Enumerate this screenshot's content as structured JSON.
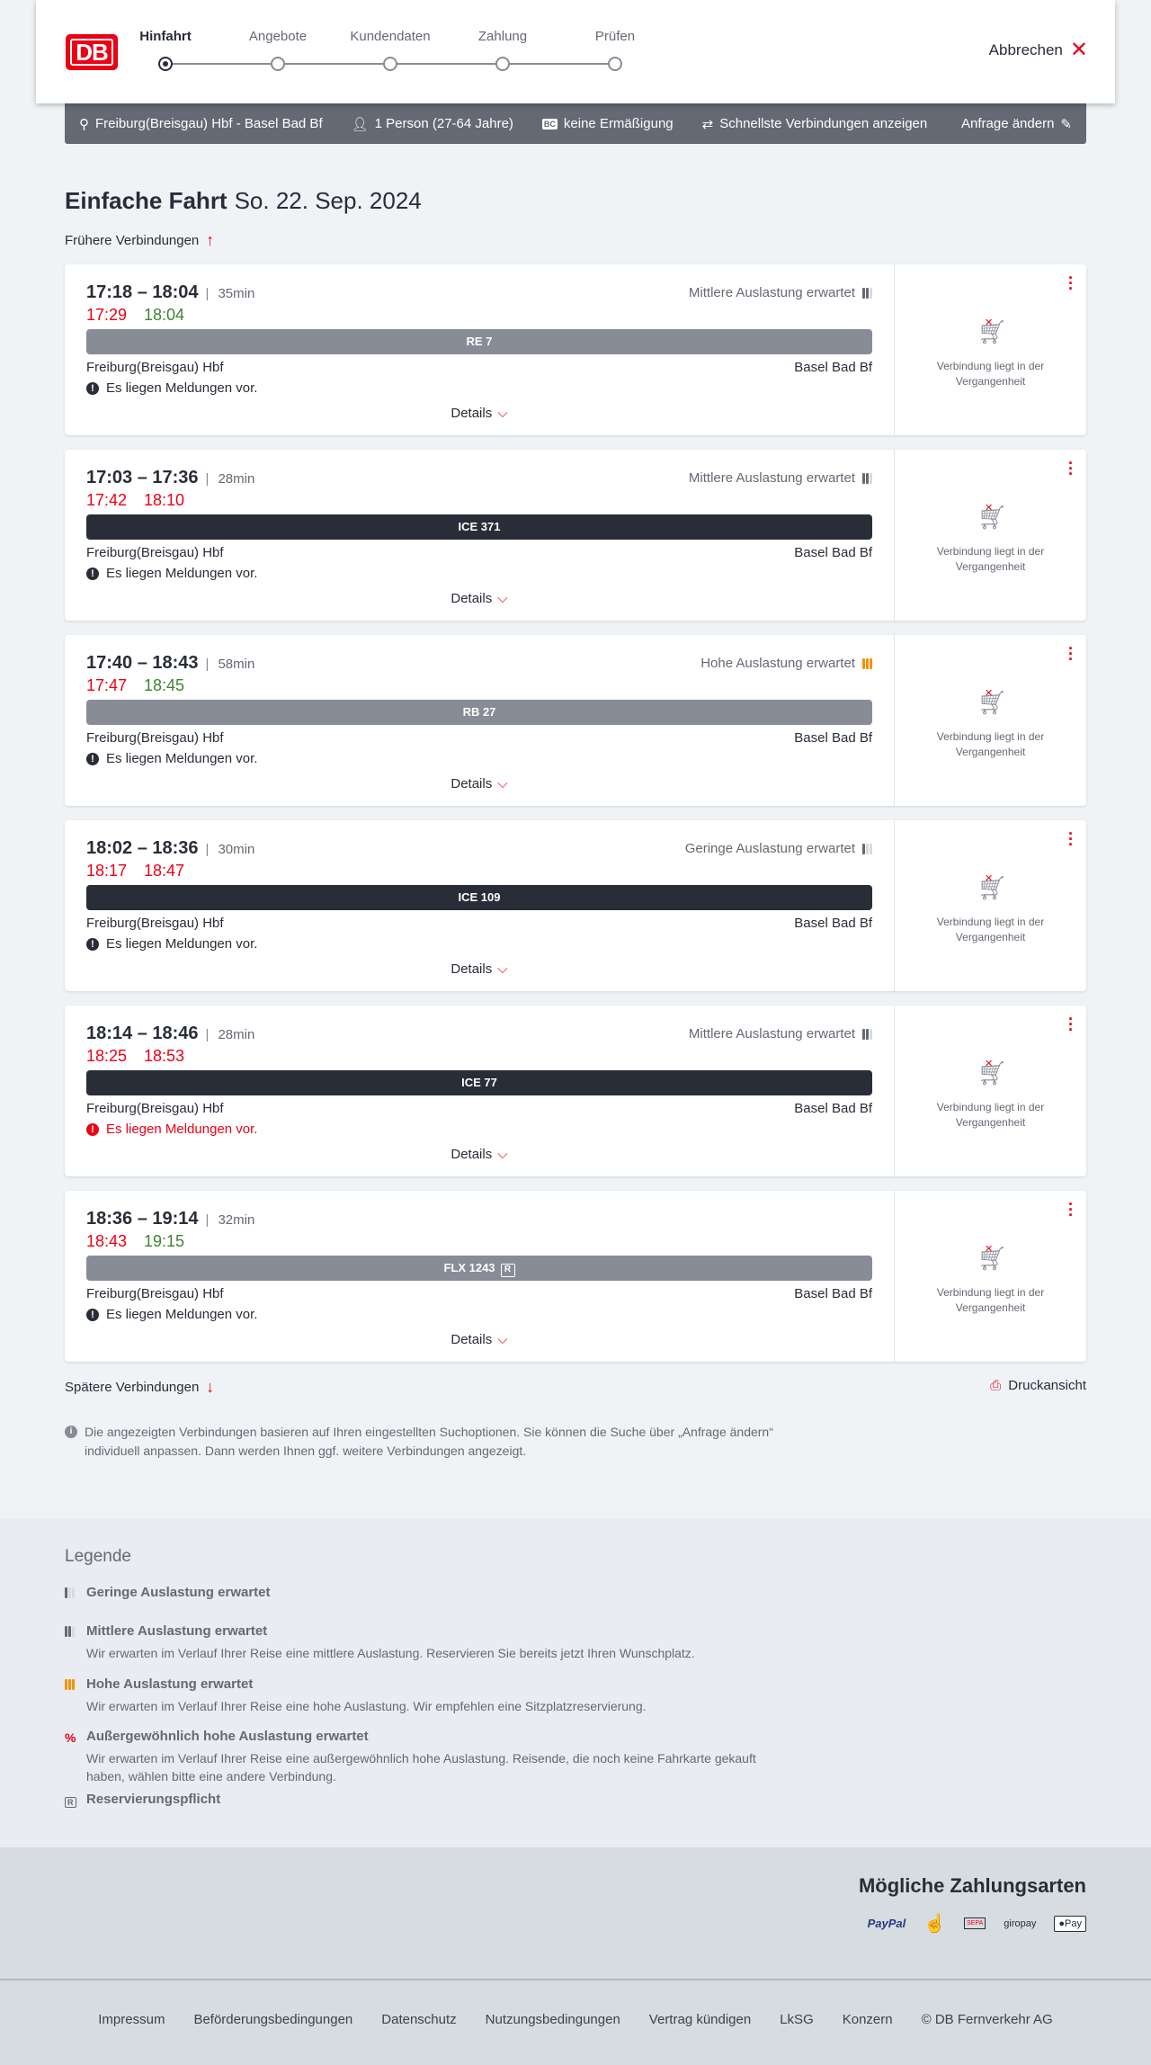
{
  "header": {
    "logo": "DB",
    "steps": [
      "Hinfahrt",
      "Angebote",
      "Kundendaten",
      "Zahlung",
      "Prüfen"
    ],
    "active_step": 0,
    "cancel": "Abbrechen"
  },
  "search": {
    "route": "Freiburg(Breisgau) Hbf - Basel Bad Bf",
    "persons": "1 Person (27-64 Jahre)",
    "discount": "keine Ermäßigung",
    "fastest": "Schnellste Verbindungen anzeigen",
    "edit": "Anfrage ändern"
  },
  "page": {
    "title": "Einfache Fahrt",
    "date": "So. 22. Sep. 2024",
    "earlier": "Frühere Verbindungen",
    "later": "Spätere Verbindungen",
    "print": "Druckansicht",
    "info": "Die angezeigten Verbindungen basieren auf Ihren eingestellten Suchoptionen. Sie können die Suche über „Anfrage ändern“ individuell anpassen. Dann werden Ihnen ggf. weitere Verbindungen angezeigt."
  },
  "colors": {
    "accent": "#ec0016",
    "delay": "#ec0016",
    "ontime": "#408335",
    "regional": "#878c96",
    "longdistance": "#282d37",
    "high_occupancy": "#f39200"
  },
  "connections": [
    {
      "times": "17:18 – 18:04",
      "duration": "35min",
      "occupancy": "Mittlere Auslastung erwartet",
      "level": 2,
      "rt_dep": "17:29",
      "rt_arr": "18:04",
      "arr_ontime": true,
      "train": "RE 7",
      "dark": false,
      "from": "Freiburg(Breisgau) Hbf",
      "to": "Basel Bad Bf",
      "message": "Es liegen Meldungen vor.",
      "warn": false,
      "details": "Details",
      "status": "Verbindung liegt in der Vergangenheit"
    },
    {
      "times": "17:03 – 17:36",
      "duration": "28min",
      "occupancy": "Mittlere Auslastung erwartet",
      "level": 2,
      "rt_dep": "17:42",
      "rt_arr": "18:10",
      "arr_ontime": false,
      "train": "ICE 371",
      "dark": true,
      "from": "Freiburg(Breisgau) Hbf",
      "to": "Basel Bad Bf",
      "message": "Es liegen Meldungen vor.",
      "warn": false,
      "details": "Details",
      "status": "Verbindung liegt in der Vergangenheit"
    },
    {
      "times": "17:40 – 18:43",
      "duration": "58min",
      "occupancy": "Hohe Auslastung erwartet",
      "level": 3,
      "rt_dep": "17:47",
      "rt_arr": "18:45",
      "arr_ontime": true,
      "train": "RB 27",
      "dark": false,
      "from": "Freiburg(Breisgau) Hbf",
      "to": "Basel Bad Bf",
      "message": "Es liegen Meldungen vor.",
      "warn": false,
      "details": "Details",
      "status": "Verbindung liegt in der Vergangenheit"
    },
    {
      "times": "18:02 – 18:36",
      "duration": "30min",
      "occupancy": "Geringe Auslastung erwartet",
      "level": 1,
      "rt_dep": "18:17",
      "rt_arr": "18:47",
      "arr_ontime": false,
      "train": "ICE 109",
      "dark": true,
      "from": "Freiburg(Breisgau) Hbf",
      "to": "Basel Bad Bf",
      "message": "Es liegen Meldungen vor.",
      "warn": false,
      "details": "Details",
      "status": "Verbindung liegt in der Vergangenheit"
    },
    {
      "times": "18:14 – 18:46",
      "duration": "28min",
      "occupancy": "Mittlere Auslastung erwartet",
      "level": 2,
      "rt_dep": "18:25",
      "rt_arr": "18:53",
      "arr_ontime": false,
      "train": "ICE 77",
      "dark": true,
      "from": "Freiburg(Breisgau) Hbf",
      "to": "Basel Bad Bf",
      "message": "Es liegen Meldungen vor.",
      "warn": true,
      "details": "Details",
      "status": "Verbindung liegt in der Vergangenheit"
    },
    {
      "times": "18:36 – 19:14",
      "duration": "32min",
      "occupancy": "",
      "level": 0,
      "rt_dep": "18:43",
      "rt_arr": "19:15",
      "arr_ontime": true,
      "train": "FLX 1243",
      "reservation": "R",
      "dark": false,
      "from": "Freiburg(Breisgau) Hbf",
      "to": "Basel Bad Bf",
      "message": "Es liegen Meldungen vor.",
      "warn": false,
      "details": "Details",
      "status": "Verbindung liegt in der Vergangenheit"
    }
  ],
  "legend": {
    "title": "Legende",
    "items": [
      {
        "title": "Geringe Auslastung erwartet",
        "text": ""
      },
      {
        "title": "Mittlere Auslastung erwartet",
        "text": "Wir erwarten im Verlauf Ihrer Reise eine mittlere Auslastung. Reservieren Sie bereits jetzt Ihren Wunschplatz."
      },
      {
        "title": "Hohe Auslastung erwartet",
        "text": "Wir erwarten im Verlauf Ihrer Reise eine hohe Auslastung. Wir empfehlen eine Sitzplatzreservierung."
      },
      {
        "title": "Außergewöhnlich hohe Auslastung erwartet",
        "text": "Wir erwarten im Verlauf Ihrer Reise eine außergewöhnlich hohe Auslastung. Reisende, die noch keine Fahrkarte gekauft haben, wählen bitte eine andere Verbindung."
      },
      {
        "title": "Reservierungspflicht",
        "text": ""
      }
    ]
  },
  "payment": {
    "title": "Mögliche Zahlungsarten",
    "methods": [
      "PayPal",
      "Kreditkarte",
      "SEPA",
      "giropay",
      "Pay"
    ]
  },
  "footer": {
    "links": [
      "Impressum",
      "Beförderungsbedingungen",
      "Datenschutz",
      "Nutzungsbedingungen",
      "Vertrag kündigen",
      "LkSG",
      "Konzern",
      "© DB Fernverkehr AG"
    ]
  }
}
